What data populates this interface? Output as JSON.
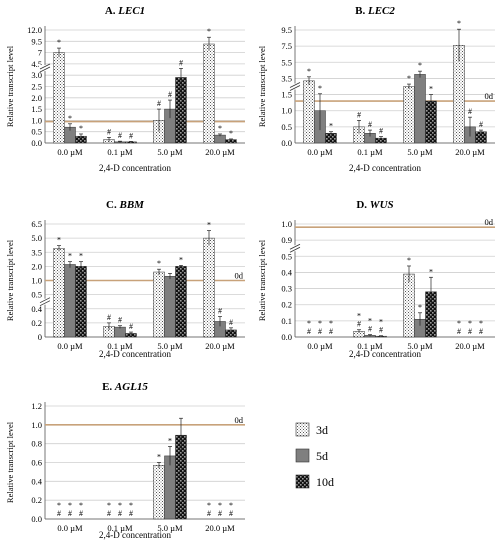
{
  "figure": {
    "legend": {
      "entries": [
        {
          "label": "3d",
          "pattern": "dots"
        },
        {
          "label": "5d",
          "pattern": "gray"
        },
        {
          "label": "10d",
          "pattern": "checker"
        }
      ]
    },
    "colors": {
      "baseline_line": "#c8a27a",
      "gray_bar": "#7f7f7f",
      "grid": "#cfcfcf",
      "text": "#000000"
    }
  },
  "chart_data": [
    {
      "type": "bar",
      "panel_letter": "A.",
      "gene": "LEC1",
      "ylabel": "Relative transcript level",
      "xlabel": "2,4-D concentration",
      "categories": [
        "0.0 µM",
        "0.1 µM",
        "5.0 µM",
        "20.0 µM"
      ],
      "series": [
        {
          "name": "3d",
          "values": [
            7.0,
            0.15,
            1.0,
            8.9
          ],
          "errors": [
            1.0,
            0.1,
            0.5,
            1.5
          ]
        },
        {
          "name": "5d",
          "values": [
            0.7,
            0.05,
            1.5,
            0.35
          ],
          "errors": [
            0.15,
            0.03,
            0.4,
            0.05
          ]
        },
        {
          "name": "10d",
          "values": [
            0.3,
            0.05,
            2.9,
            0.15
          ],
          "errors": [
            0.1,
            0.02,
            1.0,
            0.03
          ]
        }
      ],
      "ylim": [
        0,
        12
      ],
      "axis_break": {
        "lower_max": 3.2,
        "upper_min": 4.5
      },
      "yticks": [
        0,
        0.5,
        1.0,
        1.5,
        2.0,
        2.5,
        3.0,
        4.5,
        7.0,
        9.5,
        12.0
      ],
      "ytick_labels": [
        "0.0",
        "0.5",
        "1.0",
        "1.5",
        "2.0",
        "2.5",
        "3.0",
        "4.5",
        "7",
        "9.5",
        "12.0"
      ],
      "baseline": {
        "value": 0.95,
        "label": ""
      },
      "annotations": [
        [
          "*",
          "#",
          "#",
          "*"
        ],
        [
          "*",
          "#",
          "#",
          "*"
        ],
        [
          "*",
          "#",
          "#",
          "*"
        ]
      ]
    },
    {
      "type": "bar",
      "panel_letter": "B.",
      "gene": "LEC2",
      "ylabel": "Relative transcript level",
      "xlabel": "2,4-D concentration",
      "categories": [
        "0.0 µM",
        "0.1 µM",
        "5.0 µM",
        "20.0 µM"
      ],
      "series": [
        {
          "name": "3d",
          "values": [
            3.2,
            0.5,
            2.5,
            7.6
          ],
          "errors": [
            0.5,
            0.2,
            0.3,
            2.0
          ]
        },
        {
          "name": "5d",
          "values": [
            1.0,
            0.3,
            4.0,
            0.5
          ],
          "errors": [
            0.6,
            0.1,
            0.4,
            0.3
          ]
        },
        {
          "name": "10d",
          "values": [
            0.3,
            0.15,
            1.3,
            0.35
          ],
          "errors": [
            0.05,
            0.05,
            0.2,
            0.05
          ]
        }
      ],
      "ylim": [
        0,
        9.5
      ],
      "axis_break": {
        "lower_max": 1.5,
        "upper_min": 1.5
      },
      "yticks": [
        0,
        0.5,
        1.0,
        1.5,
        3.5,
        5.5,
        7.5,
        9.5
      ],
      "ytick_labels": [
        "0.0",
        "0.5",
        "1.0",
        "1.5",
        "3.5",
        "5.5",
        "7.5",
        "9.5"
      ],
      "baseline": {
        "value": 1.3,
        "label": "0d"
      },
      "annotations": [
        [
          "*",
          "#",
          "*",
          "*"
        ],
        [
          "*",
          "#",
          "*",
          "#"
        ],
        [
          "*",
          "#",
          "*",
          "#"
        ]
      ]
    },
    {
      "type": "bar",
      "panel_letter": "C.",
      "gene": "BBM",
      "ylabel": "Relative transcript level",
      "xlabel": "2,4-D concentration",
      "categories": [
        "0.0 µM",
        "0.1 µM",
        "5.0 µM",
        "20.0 µM"
      ],
      "series": [
        {
          "name": "3d",
          "values": [
            3.9,
            0.15,
            1.6,
            5.0
          ],
          "errors": [
            0.3,
            0.05,
            0.2,
            0.8
          ]
        },
        {
          "name": "5d",
          "values": [
            2.2,
            0.14,
            1.3,
            0.22
          ],
          "errors": [
            0.3,
            0.02,
            0.2,
            0.07
          ]
        },
        {
          "name": "10d",
          "values": [
            2.0,
            0.05,
            2.0,
            0.1
          ],
          "errors": [
            0.5,
            0.02,
            0.1,
            0.03
          ]
        }
      ],
      "ylim": [
        0,
        6.5
      ],
      "axis_break": {
        "lower_max": 0.4,
        "upper_min": 0.5
      },
      "yticks": [
        0,
        0.2,
        0.4,
        0.5,
        1.0,
        2.0,
        3.5,
        5.0,
        6.5
      ],
      "ytick_labels": [
        "0",
        "0.2",
        "0.4",
        "0.5",
        "1.0",
        "2.0",
        "3.5",
        "5.0",
        "6.5"
      ],
      "baseline": {
        "value": 1.0,
        "label": "0d"
      },
      "annotations": [
        [
          "*",
          "#",
          "*",
          "*"
        ],
        [
          "*",
          "#",
          "",
          "#"
        ],
        [
          "*",
          "#",
          "*",
          "#"
        ]
      ]
    },
    {
      "type": "bar",
      "panel_letter": "D.",
      "gene": "WUS",
      "ylabel": "Relative transcript level",
      "xlabel": "2,4-D concentration",
      "categories": [
        "0.0 µM",
        "0.1 µM",
        "5.0 µM",
        "20.0 µM"
      ],
      "series": [
        {
          "name": "3d",
          "values": [
            0.0,
            0.035,
            0.39,
            0.0
          ],
          "errors": [
            0,
            0.01,
            0.05,
            0
          ]
        },
        {
          "name": "5d",
          "values": [
            0.0,
            0.01,
            0.11,
            0.0
          ],
          "errors": [
            0,
            0.005,
            0.04,
            0
          ]
        },
        {
          "name": "10d",
          "values": [
            0.0,
            0.005,
            0.28,
            0.0
          ],
          "errors": [
            0,
            0.003,
            0.09,
            0
          ]
        }
      ],
      "ylim": [
        0,
        1.0
      ],
      "axis_break": {
        "lower_max": 0.5,
        "upper_min": 0.9
      },
      "yticks": [
        0,
        0.1,
        0.2,
        0.3,
        0.4,
        0.5,
        0.9,
        1.0
      ],
      "ytick_labels": [
        "0.0",
        "0.1",
        "0.2",
        "0.3",
        "0.4",
        "0.5",
        "0.9",
        "1.0"
      ],
      "baseline": {
        "value": 0.98,
        "label": "0d"
      },
      "annotations": [
        [
          "*#",
          "*#",
          "*",
          "*#"
        ],
        [
          "*#",
          "*#",
          "*",
          "*#"
        ],
        [
          "*#",
          "*#",
          "*",
          "*#"
        ]
      ]
    },
    {
      "type": "bar",
      "panel_letter": "E.",
      "gene": "AGL15",
      "ylabel": "Relative transcript level",
      "xlabel": "2,4-D concentration",
      "categories": [
        "0.0 µM",
        "0.1 µM",
        "5.0 µM",
        "20.0 µM"
      ],
      "series": [
        {
          "name": "3d",
          "values": [
            0.0,
            0.0,
            0.57,
            0.0
          ],
          "errors": [
            0,
            0,
            0.03,
            0
          ]
        },
        {
          "name": "5d",
          "values": [
            0.0,
            0.0,
            0.67,
            0.0
          ],
          "errors": [
            0,
            0,
            0.1,
            0
          ]
        },
        {
          "name": "10d",
          "values": [
            0.0,
            0.0,
            0.89,
            0.0
          ],
          "errors": [
            0,
            0,
            0.18,
            0
          ]
        }
      ],
      "ylim": [
        0,
        1.2
      ],
      "axis_break": null,
      "yticks": [
        0,
        0.2,
        0.4,
        0.6,
        0.8,
        1.0,
        1.2
      ],
      "ytick_labels": [
        "0.0",
        "0.2",
        "0.4",
        "0.6",
        "0.8",
        "1.0",
        "1.2"
      ],
      "baseline": {
        "value": 1.0,
        "label": "0d"
      },
      "annotations": [
        [
          "*#",
          "*#",
          "*",
          "*#"
        ],
        [
          "*#",
          "*#",
          "*",
          "*#"
        ],
        [
          "*#",
          "*#",
          "",
          "*#"
        ]
      ]
    }
  ]
}
